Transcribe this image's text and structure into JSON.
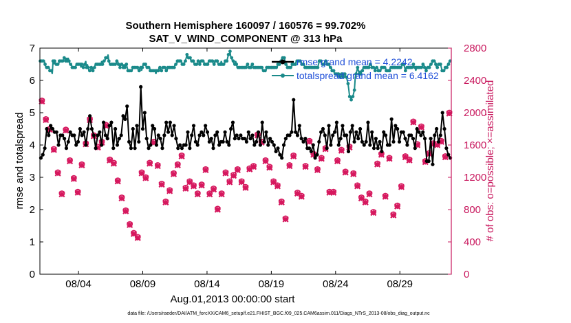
{
  "chart_data": {
    "type": "line",
    "title": "Southern Hemisphere 160097 / 160576 = 99.702%",
    "subtitle": "SAT_V_WIND_COMPONENT @ 313 hPa",
    "xlabel": "Aug.01,2013 00:00:00 start",
    "ylabel": "rmse and totalspread",
    "y2label": "# of obs: o=possible; ×=assimilated",
    "xlim": [
      0,
      32
    ],
    "ylim": [
      0,
      7
    ],
    "y2lim": [
      0,
      2800
    ],
    "x_ticks": [
      3,
      8,
      13,
      18,
      23,
      28
    ],
    "x_tick_labels": [
      "08/04",
      "08/09",
      "08/14",
      "08/19",
      "08/24",
      "08/29"
    ],
    "y_ticks": [
      0,
      1,
      2,
      3,
      4,
      5,
      6,
      7
    ],
    "y2_ticks": [
      0,
      400,
      800,
      1200,
      1600,
      2000,
      2400,
      2800
    ],
    "legend_position": "top-right",
    "colors": {
      "rmse": "#000000",
      "spread": "#1a8a8a",
      "obs": "#d6185e",
      "legend_text": "#1f4fd8",
      "y2axis": "#c8175d"
    },
    "series": [
      {
        "name": "rmse grand mean = 4.2242",
        "axis": "left",
        "values": [
          3.6,
          3.7,
          3.9,
          4.5,
          4.3,
          4.6,
          4.5,
          4.4,
          4.4,
          4.0,
          4.3,
          4.3,
          4.2,
          3.9,
          4.1,
          4.4,
          4.3,
          4.3,
          4.0,
          4.1,
          4.5,
          4.3,
          4.4,
          4.0,
          4.5,
          4.9,
          4.5,
          4.3,
          3.9,
          4.3,
          4.4,
          4.0,
          4.7,
          4.3,
          4.2,
          4.6,
          4.7,
          3.9,
          4.5,
          4.0,
          4.2,
          4.3,
          4.9,
          4.8,
          5.2,
          4.1,
          3.9,
          4.5,
          3.9,
          4.6,
          4.1,
          5.8,
          4.5,
          5.0,
          4.2,
          3.9,
          4.0,
          4.6,
          4.5,
          4.0,
          4.3,
          4.2,
          3.9,
          4.3,
          4.7,
          4.4,
          4.7,
          4.3,
          4.6,
          4.2,
          3.9,
          4.0,
          3.9,
          4.0,
          4.0,
          4.4,
          3.9,
          4.3,
          4.6,
          4.1,
          4.0,
          4.3,
          4.4,
          4.3,
          4.6,
          4.4,
          4.1,
          4.2,
          3.9,
          4.3,
          4.4,
          4.0,
          4.1,
          4.1,
          4.4,
          4.1,
          4.0,
          4.5,
          4.7,
          4.2,
          4.3,
          4.2,
          4.3,
          4.2,
          4.2,
          4.1,
          4.4,
          4.2,
          4.3,
          4.0,
          4.1,
          4.4,
          4.0,
          4.7,
          4.1,
          4.4,
          4.0,
          4.2,
          4.1,
          4.0,
          3.8,
          3.9,
          3.7,
          3.6,
          4.0,
          4.2,
          4.3,
          4.3,
          4.4,
          5.4,
          4.4,
          4.3,
          4.6,
          4.2,
          4.1,
          4.2,
          3.9,
          3.9,
          3.8,
          4.0,
          3.6,
          3.7,
          4.1,
          4.4,
          4.5,
          4.3,
          3.9,
          4.6,
          4.0,
          4.3,
          4.4,
          4.7,
          4.0,
          4.2,
          4.6,
          4.3,
          4.3,
          3.8,
          4.4,
          4.6,
          4.1,
          4.4,
          4.2,
          4.5,
          4.1,
          4.0,
          4.1,
          4.7,
          4.0,
          4.4,
          3.9,
          4.2,
          3.9,
          4.1,
          3.8,
          4.4,
          4.3,
          4.0,
          4.0,
          4.8,
          4.1,
          4.6,
          4.5,
          4.1,
          4.4,
          4.4,
          4.2,
          4.0,
          4.3,
          4.3,
          4.2,
          3.9,
          4.5,
          4.4,
          4.3,
          4.4,
          4.2,
          3.5,
          3.5,
          4.2,
          3.4,
          4.3,
          4.5,
          4.1,
          4.3,
          5.0,
          4.5,
          3.9,
          3.7,
          3.6
        ]
      },
      {
        "name": "totalspread grand mean = 6.4162",
        "axis": "left",
        "values": [
          6.6,
          6.6,
          6.6,
          6.6,
          6.6,
          6.6,
          6.5,
          6.4,
          6.4,
          6.4,
          6.4,
          6.4,
          6.3,
          6.3,
          6.3,
          6.2,
          6.6,
          6.5,
          6.6,
          6.5,
          6.5,
          6.5,
          6.5,
          6.5,
          6.6,
          6.6,
          6.6,
          6.6,
          6.6,
          6.6,
          6.7,
          6.7,
          6.6,
          6.7,
          6.6,
          6.7,
          6.6,
          6.5,
          6.5,
          6.5,
          6.4,
          6.4,
          6.4,
          6.4,
          6.4,
          6.5,
          6.5,
          6.5,
          6.5,
          6.5,
          6.5,
          6.4,
          6.5,
          6.4,
          6.4,
          6.5,
          6.5,
          6.6,
          6.4,
          6.5,
          6.4,
          6.3,
          6.3,
          6.3,
          6.4,
          6.4,
          6.3,
          6.4,
          6.4,
          6.5,
          6.5,
          6.5,
          6.5,
          6.5,
          6.5,
          6.5,
          6.5,
          6.6,
          6.5,
          6.6,
          6.6,
          6.6,
          6.7,
          6.7,
          6.7,
          6.8,
          6.6,
          6.5,
          6.5,
          6.5,
          6.5,
          6.5,
          6.5,
          6.5,
          6.5,
          6.5,
          6.6,
          6.6,
          6.5,
          6.5,
          6.4,
          6.5,
          6.5,
          6.5,
          6.4,
          6.5,
          6.4,
          6.5,
          6.5,
          6.4,
          6.3,
          6.3,
          6.3,
          6.3,
          6.3,
          6.3,
          6.4,
          6.4,
          6.4,
          6.4,
          6.4,
          6.4,
          6.4,
          6.3,
          6.3,
          6.4,
          6.4,
          6.3,
          6.4,
          6.5,
          6.5,
          6.5,
          6.5,
          6.4,
          6.4,
          6.4,
          6.4,
          6.4,
          6.3,
          6.3,
          6.3,
          6.3,
          6.3,
          6.3,
          6.3,
          6.2,
          6.3,
          6.3,
          6.3,
          6.4,
          6.4,
          6.3,
          6.3,
          6.4,
          6.4,
          6.4,
          6.4,
          6.4,
          6.3,
          6.3,
          6.4,
          6.4,
          6.4,
          6.4,
          6.4,
          6.4,
          6.4,
          6.4,
          6.4,
          6.5,
          6.5,
          6.5,
          6.6,
          6.6,
          6.6,
          6.6,
          6.6,
          6.6,
          6.5,
          6.5,
          6.5,
          6.6,
          6.6,
          6.7,
          6.8,
          6.7,
          6.7,
          6.7,
          6.7,
          6.6,
          6.6,
          6.6,
          6.6,
          6.5,
          6.5,
          6.5,
          6.5,
          6.5,
          6.6,
          6.6,
          6.5,
          6.6,
          6.6,
          6.6,
          6.6,
          6.6,
          6.5,
          6.5,
          6.5,
          6.5,
          6.5,
          6.6,
          6.6,
          6.6,
          6.6,
          6.6,
          6.6,
          6.5,
          6.5,
          6.6,
          6.6,
          6.6,
          6.6,
          6.5,
          6.5,
          6.5,
          6.5,
          6.6,
          6.5,
          6.5,
          6.5,
          6.5,
          6.6,
          6.6,
          6.6,
          6.7,
          6.8,
          6.8,
          6.9,
          6.7,
          6.7,
          6.6,
          6.6,
          6.5,
          6.5,
          6.6,
          6.5,
          6.4,
          6.4,
          6.4,
          6.4,
          6.4,
          6.4,
          6.4,
          6.4,
          6.4,
          6.4,
          6.4,
          6.4,
          6.5,
          6.5,
          6.4,
          6.4,
          6.4,
          6.4,
          6.5,
          6.5,
          6.4,
          6.4,
          6.4,
          6.4,
          6.4,
          6.4,
          6.4,
          6.4,
          6.4,
          6.4,
          6.4,
          6.4,
          6.3,
          6.3,
          6.3,
          6.3,
          6.3,
          6.4,
          6.4,
          6.4,
          6.4,
          6.4,
          6.4,
          6.4,
          6.4,
          6.4,
          6.4,
          6.4,
          6.4,
          6.4,
          6.4,
          6.5,
          6.5,
          6.5,
          6.6,
          6.6,
          6.7,
          6.7,
          6.7,
          6.7,
          6.6,
          6.5,
          6.5,
          6.4,
          6.4,
          6.4,
          6.4,
          6.4,
          6.4,
          6.5,
          6.5,
          6.5,
          6.5,
          6.5,
          6.6,
          6.6,
          6.6,
          6.6,
          6.6,
          6.6,
          6.6,
          6.5,
          6.5,
          6.5,
          6.5,
          6.4,
          6.4,
          6.4,
          6.4,
          6.4,
          6.4,
          6.4,
          6.4,
          6.4,
          6.4,
          6.4,
          6.4,
          6.4,
          6.4,
          6.4,
          6.4,
          6.4,
          6.5,
          6.6,
          6.6,
          6.6,
          6.5,
          6.5,
          6.5,
          6.5,
          6.6,
          6.6,
          6.6,
          6.5,
          6.5,
          6.5,
          6.4,
          6.4,
          6.4,
          6.3,
          6.3,
          6.3,
          6.2,
          6.2,
          6.2,
          6.2,
          6.1,
          6.2,
          6.2,
          6.1,
          6.1,
          6.2,
          6.1,
          6.1,
          6.2,
          6.2,
          6.1,
          6.1,
          6.0,
          5.9,
          5.7,
          5.5,
          5.5,
          5.4,
          5.5,
          5.5,
          5.6,
          5.7,
          6.1,
          6.2,
          6.3,
          6.4,
          6.3,
          6.2,
          6.3,
          6.2,
          6.3,
          6.3,
          6.4,
          6.4,
          6.4,
          6.4,
          6.4,
          6.4,
          6.4,
          6.4,
          6.5,
          6.5,
          6.5,
          6.4,
          6.4,
          6.4,
          6.4,
          6.3,
          6.4,
          6.4,
          6.4,
          6.3,
          6.3,
          6.3,
          6.3,
          6.4,
          6.4,
          6.4,
          6.4,
          6.4,
          6.4,
          6.3,
          6.3,
          6.3,
          6.3,
          6.3,
          6.4,
          6.4,
          6.4,
          6.4,
          6.4,
          6.4,
          6.4,
          6.4,
          6.4,
          6.4,
          6.4,
          6.4,
          6.4,
          6.4,
          6.4,
          6.5,
          6.5,
          6.5,
          6.4,
          6.3,
          6.4,
          6.4,
          6.4,
          6.4,
          6.4,
          6.4,
          6.4,
          6.4,
          6.4,
          6.5,
          6.4,
          6.4,
          6.3,
          6.4,
          6.4,
          6.4,
          6.4,
          6.4,
          6.4,
          6.4,
          6.4,
          6.5,
          6.5,
          6.4,
          6.4,
          6.3,
          6.4,
          6.4,
          6.4,
          6.4,
          6.5,
          6.5,
          6.5,
          6.6,
          6.6,
          6.6,
          6.6,
          6.5,
          6.4,
          6.4,
          6.5,
          6.5,
          6.5,
          6.5,
          6.4,
          6.3,
          6.3,
          6.3,
          6.3,
          6.4,
          6.4,
          6.4,
          6.5,
          6.5,
          6.6,
          6.6,
          6.6
        ]
      },
      {
        "name": "obs possible",
        "axis": "right",
        "values": [
          2150,
          1920,
          1800,
          1550,
          1260,
          1000,
          1790,
          1410,
          1190,
          1020,
          1360,
          1620,
          1920,
          1720,
          1580,
          1640,
          1850,
          1420,
          1380,
          1160,
          950,
          790,
          620,
          510,
          460,
          1260,
          1200,
          1380,
          1640,
          1350,
          1120,
          900,
          1040,
          1250,
          1360,
          1470,
          1070,
          1150,
          1100,
          1000,
          1110,
          1300,
          1000,
          1060,
          810,
          1000,
          1260,
          1150,
          1230,
          1300,
          1150,
          1080,
          1310,
          1340,
          1730,
          1640,
          1410,
          1330,
          1150,
          1100,
          900,
          690,
          1350,
          1470,
          1010,
          970,
          1340,
          1650,
          1490,
          1300,
          1440,
          1560,
          1020,
          1020,
          1410,
          1540,
          1270,
          1580,
          1250,
          1100,
          950,
          900,
          1000,
          770,
          1370,
          1490,
          970,
          1440,
          740,
          850,
          1090,
          1460,
          1420,
          1890,
          1610,
          1830,
          1400,
          1500,
          1620,
          1610,
          1650,
          1460,
          2000
        ]
      },
      {
        "name": "obs assimilated",
        "axis": "right",
        "values": [
          2140,
          1910,
          1790,
          1540,
          1250,
          990,
          1780,
          1400,
          1180,
          1010,
          1350,
          1610,
          1910,
          1710,
          1570,
          1630,
          1840,
          1410,
          1370,
          1150,
          940,
          780,
          610,
          500,
          450,
          1250,
          1190,
          1370,
          1630,
          1340,
          1110,
          890,
          1030,
          1240,
          1350,
          1460,
          1060,
          1140,
          1090,
          990,
          1100,
          1290,
          990,
          1050,
          800,
          990,
          1250,
          1140,
          1220,
          1290,
          1140,
          1070,
          1300,
          1330,
          1720,
          1630,
          1400,
          1320,
          1140,
          1090,
          890,
          680,
          1340,
          1460,
          1000,
          960,
          1330,
          1640,
          1480,
          1290,
          1430,
          1550,
          1010,
          1010,
          1400,
          1530,
          1260,
          1570,
          1240,
          1090,
          940,
          890,
          990,
          760,
          1360,
          1480,
          960,
          1430,
          730,
          840,
          1080,
          1450,
          1410,
          1880,
          1600,
          1820,
          1390,
          1490,
          1610,
          1600,
          1640,
          1450,
          1990
        ]
      }
    ]
  },
  "footer": "data file: /Users/raeder/DAI/ATM_forcXX/CAM6_setup/f.e21.FHIST_BGC.f09_025.CAM6assim.011/Diags_NTrS_2013-08/obs_diag_output.nc"
}
